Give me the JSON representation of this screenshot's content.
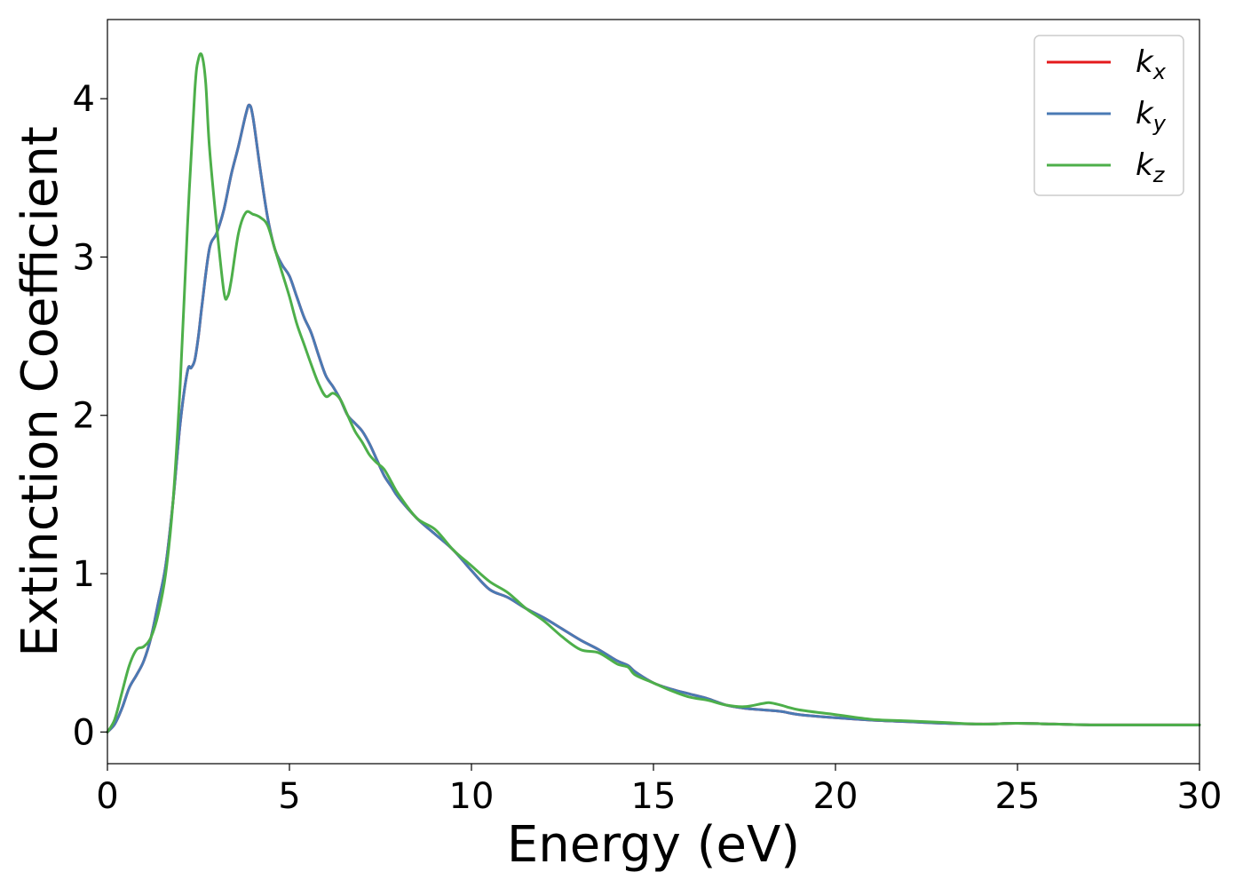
{
  "chart_data": {
    "type": "line",
    "title": "",
    "xlabel": "Energy (eV)",
    "ylabel": "Extinction Coefficient",
    "xlim": [
      0,
      30
    ],
    "ylim": [
      -0.2,
      4.5
    ],
    "xticks": [
      0,
      5,
      10,
      15,
      20,
      25,
      30
    ],
    "yticks": [
      0,
      1,
      2,
      3,
      4
    ],
    "xtick_labels": [
      "0",
      "5",
      "10",
      "15",
      "20",
      "25",
      "30"
    ],
    "ytick_labels": [
      "0",
      "1",
      "2",
      "3",
      "4"
    ],
    "grid": false,
    "legend_position": "top-right",
    "series": [
      {
        "name": "k",
        "subscript": "x",
        "color": "#e41a1c",
        "x": [
          0,
          0.2,
          0.4,
          0.6,
          0.8,
          1.0,
          1.2,
          1.4,
          1.6,
          1.8,
          2.0,
          2.2,
          2.3,
          2.4,
          2.5,
          2.6,
          2.8,
          3.0,
          3.2,
          3.4,
          3.6,
          3.8,
          3.9,
          4.0,
          4.2,
          4.4,
          4.6,
          4.8,
          5.0,
          5.2,
          5.4,
          5.6,
          5.8,
          6.0,
          6.2,
          6.4,
          6.6,
          6.8,
          7.0,
          7.2,
          7.4,
          7.6,
          7.8,
          8.0,
          8.5,
          9.0,
          9.5,
          10.0,
          10.5,
          11.0,
          11.5,
          12.0,
          12.5,
          13.0,
          13.5,
          14.0,
          14.3,
          14.5,
          15.0,
          15.5,
          16.0,
          16.5,
          17.0,
          17.5,
          18.0,
          18.5,
          19.0,
          20.0,
          21.0,
          22.0,
          23.0,
          24.0,
          25.0,
          26.0,
          27.0,
          28.0,
          29.0,
          30.0
        ],
        "y": [
          0,
          0.05,
          0.15,
          0.28,
          0.36,
          0.45,
          0.6,
          0.82,
          1.05,
          1.45,
          1.95,
          2.28,
          2.3,
          2.35,
          2.5,
          2.7,
          3.05,
          3.15,
          3.3,
          3.52,
          3.7,
          3.9,
          3.96,
          3.88,
          3.55,
          3.25,
          3.05,
          2.95,
          2.88,
          2.75,
          2.62,
          2.52,
          2.38,
          2.25,
          2.18,
          2.1,
          2.0,
          1.95,
          1.9,
          1.82,
          1.72,
          1.62,
          1.55,
          1.48,
          1.35,
          1.25,
          1.15,
          1.02,
          0.9,
          0.85,
          0.78,
          0.72,
          0.65,
          0.58,
          0.52,
          0.45,
          0.42,
          0.38,
          0.31,
          0.27,
          0.24,
          0.21,
          0.17,
          0.15,
          0.14,
          0.13,
          0.11,
          0.09,
          0.075,
          0.065,
          0.055,
          0.05,
          0.055,
          0.05,
          0.045,
          0.045,
          0.045,
          0.045
        ]
      },
      {
        "name": "k",
        "subscript": "y",
        "color": "#4a7ab4",
        "x": [
          0,
          0.2,
          0.4,
          0.6,
          0.8,
          1.0,
          1.2,
          1.4,
          1.6,
          1.8,
          2.0,
          2.2,
          2.3,
          2.4,
          2.5,
          2.6,
          2.8,
          3.0,
          3.2,
          3.4,
          3.6,
          3.8,
          3.9,
          4.0,
          4.2,
          4.4,
          4.6,
          4.8,
          5.0,
          5.2,
          5.4,
          5.6,
          5.8,
          6.0,
          6.2,
          6.4,
          6.6,
          6.8,
          7.0,
          7.2,
          7.4,
          7.6,
          7.8,
          8.0,
          8.5,
          9.0,
          9.5,
          10.0,
          10.5,
          11.0,
          11.5,
          12.0,
          12.5,
          13.0,
          13.5,
          14.0,
          14.3,
          14.5,
          15.0,
          15.5,
          16.0,
          16.5,
          17.0,
          17.5,
          18.0,
          18.5,
          19.0,
          20.0,
          21.0,
          22.0,
          23.0,
          24.0,
          25.0,
          26.0,
          27.0,
          28.0,
          29.0,
          30.0
        ],
        "y": [
          0,
          0.05,
          0.15,
          0.28,
          0.36,
          0.45,
          0.6,
          0.82,
          1.05,
          1.45,
          1.95,
          2.28,
          2.3,
          2.35,
          2.5,
          2.7,
          3.05,
          3.15,
          3.3,
          3.52,
          3.7,
          3.9,
          3.96,
          3.88,
          3.55,
          3.25,
          3.05,
          2.95,
          2.88,
          2.75,
          2.62,
          2.52,
          2.38,
          2.25,
          2.18,
          2.1,
          2.0,
          1.95,
          1.9,
          1.82,
          1.72,
          1.62,
          1.55,
          1.48,
          1.35,
          1.25,
          1.15,
          1.02,
          0.9,
          0.85,
          0.78,
          0.72,
          0.65,
          0.58,
          0.52,
          0.45,
          0.42,
          0.38,
          0.31,
          0.27,
          0.24,
          0.21,
          0.17,
          0.15,
          0.14,
          0.13,
          0.11,
          0.09,
          0.075,
          0.065,
          0.055,
          0.05,
          0.055,
          0.05,
          0.045,
          0.045,
          0.045,
          0.045
        ]
      },
      {
        "name": "k",
        "subscript": "z",
        "color": "#4daf4a",
        "x": [
          0,
          0.2,
          0.4,
          0.6,
          0.8,
          1.0,
          1.2,
          1.4,
          1.6,
          1.8,
          2.0,
          2.2,
          2.4,
          2.5,
          2.6,
          2.7,
          2.8,
          3.0,
          3.2,
          3.3,
          3.4,
          3.6,
          3.8,
          4.0,
          4.2,
          4.4,
          4.6,
          4.8,
          5.0,
          5.2,
          5.4,
          5.6,
          5.8,
          6.0,
          6.2,
          6.4,
          6.6,
          6.8,
          7.0,
          7.2,
          7.4,
          7.6,
          7.8,
          8.0,
          8.5,
          9.0,
          9.5,
          10.0,
          10.5,
          11.0,
          11.5,
          12.0,
          12.5,
          13.0,
          13.5,
          14.0,
          14.3,
          14.5,
          15.0,
          15.5,
          16.0,
          16.5,
          17.0,
          17.5,
          18.0,
          18.2,
          18.5,
          19.0,
          20.0,
          21.0,
          22.0,
          23.0,
          24.0,
          25.0,
          26.0,
          27.0,
          28.0,
          29.0,
          30.0
        ],
        "y": [
          0,
          0.08,
          0.25,
          0.42,
          0.52,
          0.54,
          0.6,
          0.75,
          1.0,
          1.45,
          2.2,
          3.2,
          4.05,
          4.25,
          4.27,
          4.1,
          3.7,
          3.2,
          2.78,
          2.75,
          2.85,
          3.15,
          3.28,
          3.27,
          3.25,
          3.2,
          3.05,
          2.9,
          2.75,
          2.58,
          2.45,
          2.32,
          2.2,
          2.12,
          2.14,
          2.1,
          2.0,
          1.9,
          1.83,
          1.75,
          1.7,
          1.66,
          1.58,
          1.5,
          1.35,
          1.28,
          1.15,
          1.05,
          0.95,
          0.88,
          0.78,
          0.7,
          0.6,
          0.52,
          0.5,
          0.43,
          0.41,
          0.36,
          0.31,
          0.26,
          0.22,
          0.2,
          0.17,
          0.16,
          0.18,
          0.185,
          0.17,
          0.14,
          0.11,
          0.08,
          0.07,
          0.06,
          0.05,
          0.055,
          0.05,
          0.045,
          0.045,
          0.045,
          0.045
        ]
      }
    ]
  }
}
